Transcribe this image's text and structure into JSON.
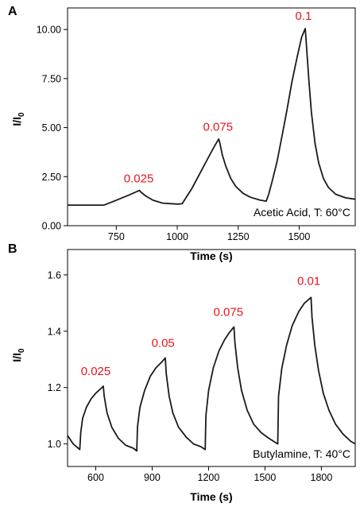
{
  "chart_data": [
    {
      "panel_label": "A",
      "type": "line",
      "xlabel": "Time (s)",
      "ylabel": "I/I0",
      "xlim": [
        550,
        1730
      ],
      "ylim": [
        0,
        11.1
      ],
      "x_ticks": [
        750,
        1000,
        1250,
        1500
      ],
      "y_ticks": [
        0.0,
        2.5,
        5.0,
        7.5,
        10.0
      ],
      "x_tick_labels": [
        "750",
        "1000",
        "1250",
        "1500"
      ],
      "y_tick_labels": [
        "0.00",
        "2.50",
        "5.00",
        "7.50",
        "10.00"
      ],
      "condition_label": "Acetic Acid, T: 60°C",
      "annotations": [
        {
          "text": "0.025",
          "x": 842,
          "y": 2.2
        },
        {
          "text": "0.075",
          "x": 1167,
          "y": 4.85
        },
        {
          "text": "0.1",
          "x": 1518,
          "y": 10.5
        }
      ],
      "series": [
        {
          "points": [
            [
              550,
              1.05
            ],
            [
              700,
              1.05
            ],
            [
              750,
              1.3
            ],
            [
              800,
              1.55
            ],
            [
              845,
              1.8
            ],
            [
              850,
              1.72
            ],
            [
              870,
              1.52
            ],
            [
              900,
              1.3
            ],
            [
              940,
              1.15
            ],
            [
              1000,
              1.1
            ],
            [
              1020,
              1.12
            ],
            [
              1060,
              1.9
            ],
            [
              1090,
              2.6
            ],
            [
              1120,
              3.3
            ],
            [
              1150,
              4.0
            ],
            [
              1170,
              4.42
            ],
            [
              1175,
              4.2
            ],
            [
              1185,
              3.6
            ],
            [
              1200,
              3.0
            ],
            [
              1220,
              2.4
            ],
            [
              1240,
              2.0
            ],
            [
              1270,
              1.65
            ],
            [
              1300,
              1.45
            ],
            [
              1340,
              1.3
            ],
            [
              1365,
              1.25
            ],
            [
              1375,
              1.6
            ],
            [
              1390,
              2.3
            ],
            [
              1410,
              3.3
            ],
            [
              1430,
              4.6
            ],
            [
              1450,
              5.9
            ],
            [
              1470,
              7.3
            ],
            [
              1490,
              8.5
            ],
            [
              1510,
              9.6
            ],
            [
              1525,
              10.05
            ],
            [
              1530,
              9.2
            ],
            [
              1540,
              7.4
            ],
            [
              1550,
              5.8
            ],
            [
              1565,
              4.2
            ],
            [
              1580,
              3.2
            ],
            [
              1600,
              2.4
            ],
            [
              1620,
              1.95
            ],
            [
              1650,
              1.6
            ],
            [
              1690,
              1.42
            ],
            [
              1730,
              1.35
            ]
          ]
        }
      ]
    },
    {
      "panel_label": "B",
      "type": "line",
      "xlabel": "Time (s)",
      "ylabel": "I/I0",
      "xlim": [
        450,
        1980
      ],
      "ylim": [
        0.92,
        1.69
      ],
      "x_ticks": [
        600,
        900,
        1200,
        1500,
        1800
      ],
      "y_ticks": [
        1.0,
        1.2,
        1.4,
        1.6
      ],
      "x_tick_labels": [
        "600",
        "900",
        "1200",
        "1500",
        "1800"
      ],
      "y_tick_labels": [
        "1.0",
        "1.2",
        "1.4",
        "1.6"
      ],
      "condition_label": "Butylamine, T: 40°C",
      "annotations": [
        {
          "text": "0.025",
          "x": 600,
          "y": 1.245
        },
        {
          "text": "0.05",
          "x": 958,
          "y": 1.345
        },
        {
          "text": "0.075",
          "x": 1305,
          "y": 1.455
        },
        {
          "text": "0.01",
          "x": 1733,
          "y": 1.565
        }
      ],
      "series": [
        {
          "points": [
            [
              450,
              1.03
            ],
            [
              480,
              1.0
            ],
            [
              515,
              0.98
            ],
            [
              520,
              1.04
            ],
            [
              530,
              1.09
            ],
            [
              550,
              1.13
            ],
            [
              575,
              1.16
            ],
            [
              600,
              1.18
            ],
            [
              625,
              1.195
            ],
            [
              640,
              1.205
            ],
            [
              645,
              1.17
            ],
            [
              660,
              1.11
            ],
            [
              685,
              1.06
            ],
            [
              720,
              1.02
            ],
            [
              760,
              0.995
            ],
            [
              800,
              0.985
            ],
            [
              818,
              0.975
            ],
            [
              822,
              1.06
            ],
            [
              835,
              1.13
            ],
            [
              860,
              1.19
            ],
            [
              890,
              1.24
            ],
            [
              920,
              1.27
            ],
            [
              950,
              1.29
            ],
            [
              970,
              1.305
            ],
            [
              975,
              1.25
            ],
            [
              990,
              1.17
            ],
            [
              1010,
              1.11
            ],
            [
              1040,
              1.06
            ],
            [
              1080,
              1.025
            ],
            [
              1120,
              1.0
            ],
            [
              1160,
              0.99
            ],
            [
              1182,
              0.98
            ],
            [
              1186,
              1.1
            ],
            [
              1200,
              1.19
            ],
            [
              1225,
              1.27
            ],
            [
              1255,
              1.33
            ],
            [
              1285,
              1.37
            ],
            [
              1310,
              1.395
            ],
            [
              1335,
              1.415
            ],
            [
              1340,
              1.36
            ],
            [
              1355,
              1.27
            ],
            [
              1375,
              1.19
            ],
            [
              1405,
              1.12
            ],
            [
              1440,
              1.07
            ],
            [
              1480,
              1.04
            ],
            [
              1520,
              1.02
            ],
            [
              1568,
              1.0
            ],
            [
              1572,
              1.17
            ],
            [
              1590,
              1.27
            ],
            [
              1615,
              1.35
            ],
            [
              1645,
              1.42
            ],
            [
              1680,
              1.47
            ],
            [
              1710,
              1.5
            ],
            [
              1745,
              1.52
            ],
            [
              1750,
              1.45
            ],
            [
              1765,
              1.35
            ],
            [
              1785,
              1.26
            ],
            [
              1810,
              1.18
            ],
            [
              1840,
              1.12
            ],
            [
              1875,
              1.07
            ],
            [
              1915,
              1.035
            ],
            [
              1955,
              1.01
            ],
            [
              1980,
              1.0
            ]
          ]
        }
      ]
    }
  ]
}
